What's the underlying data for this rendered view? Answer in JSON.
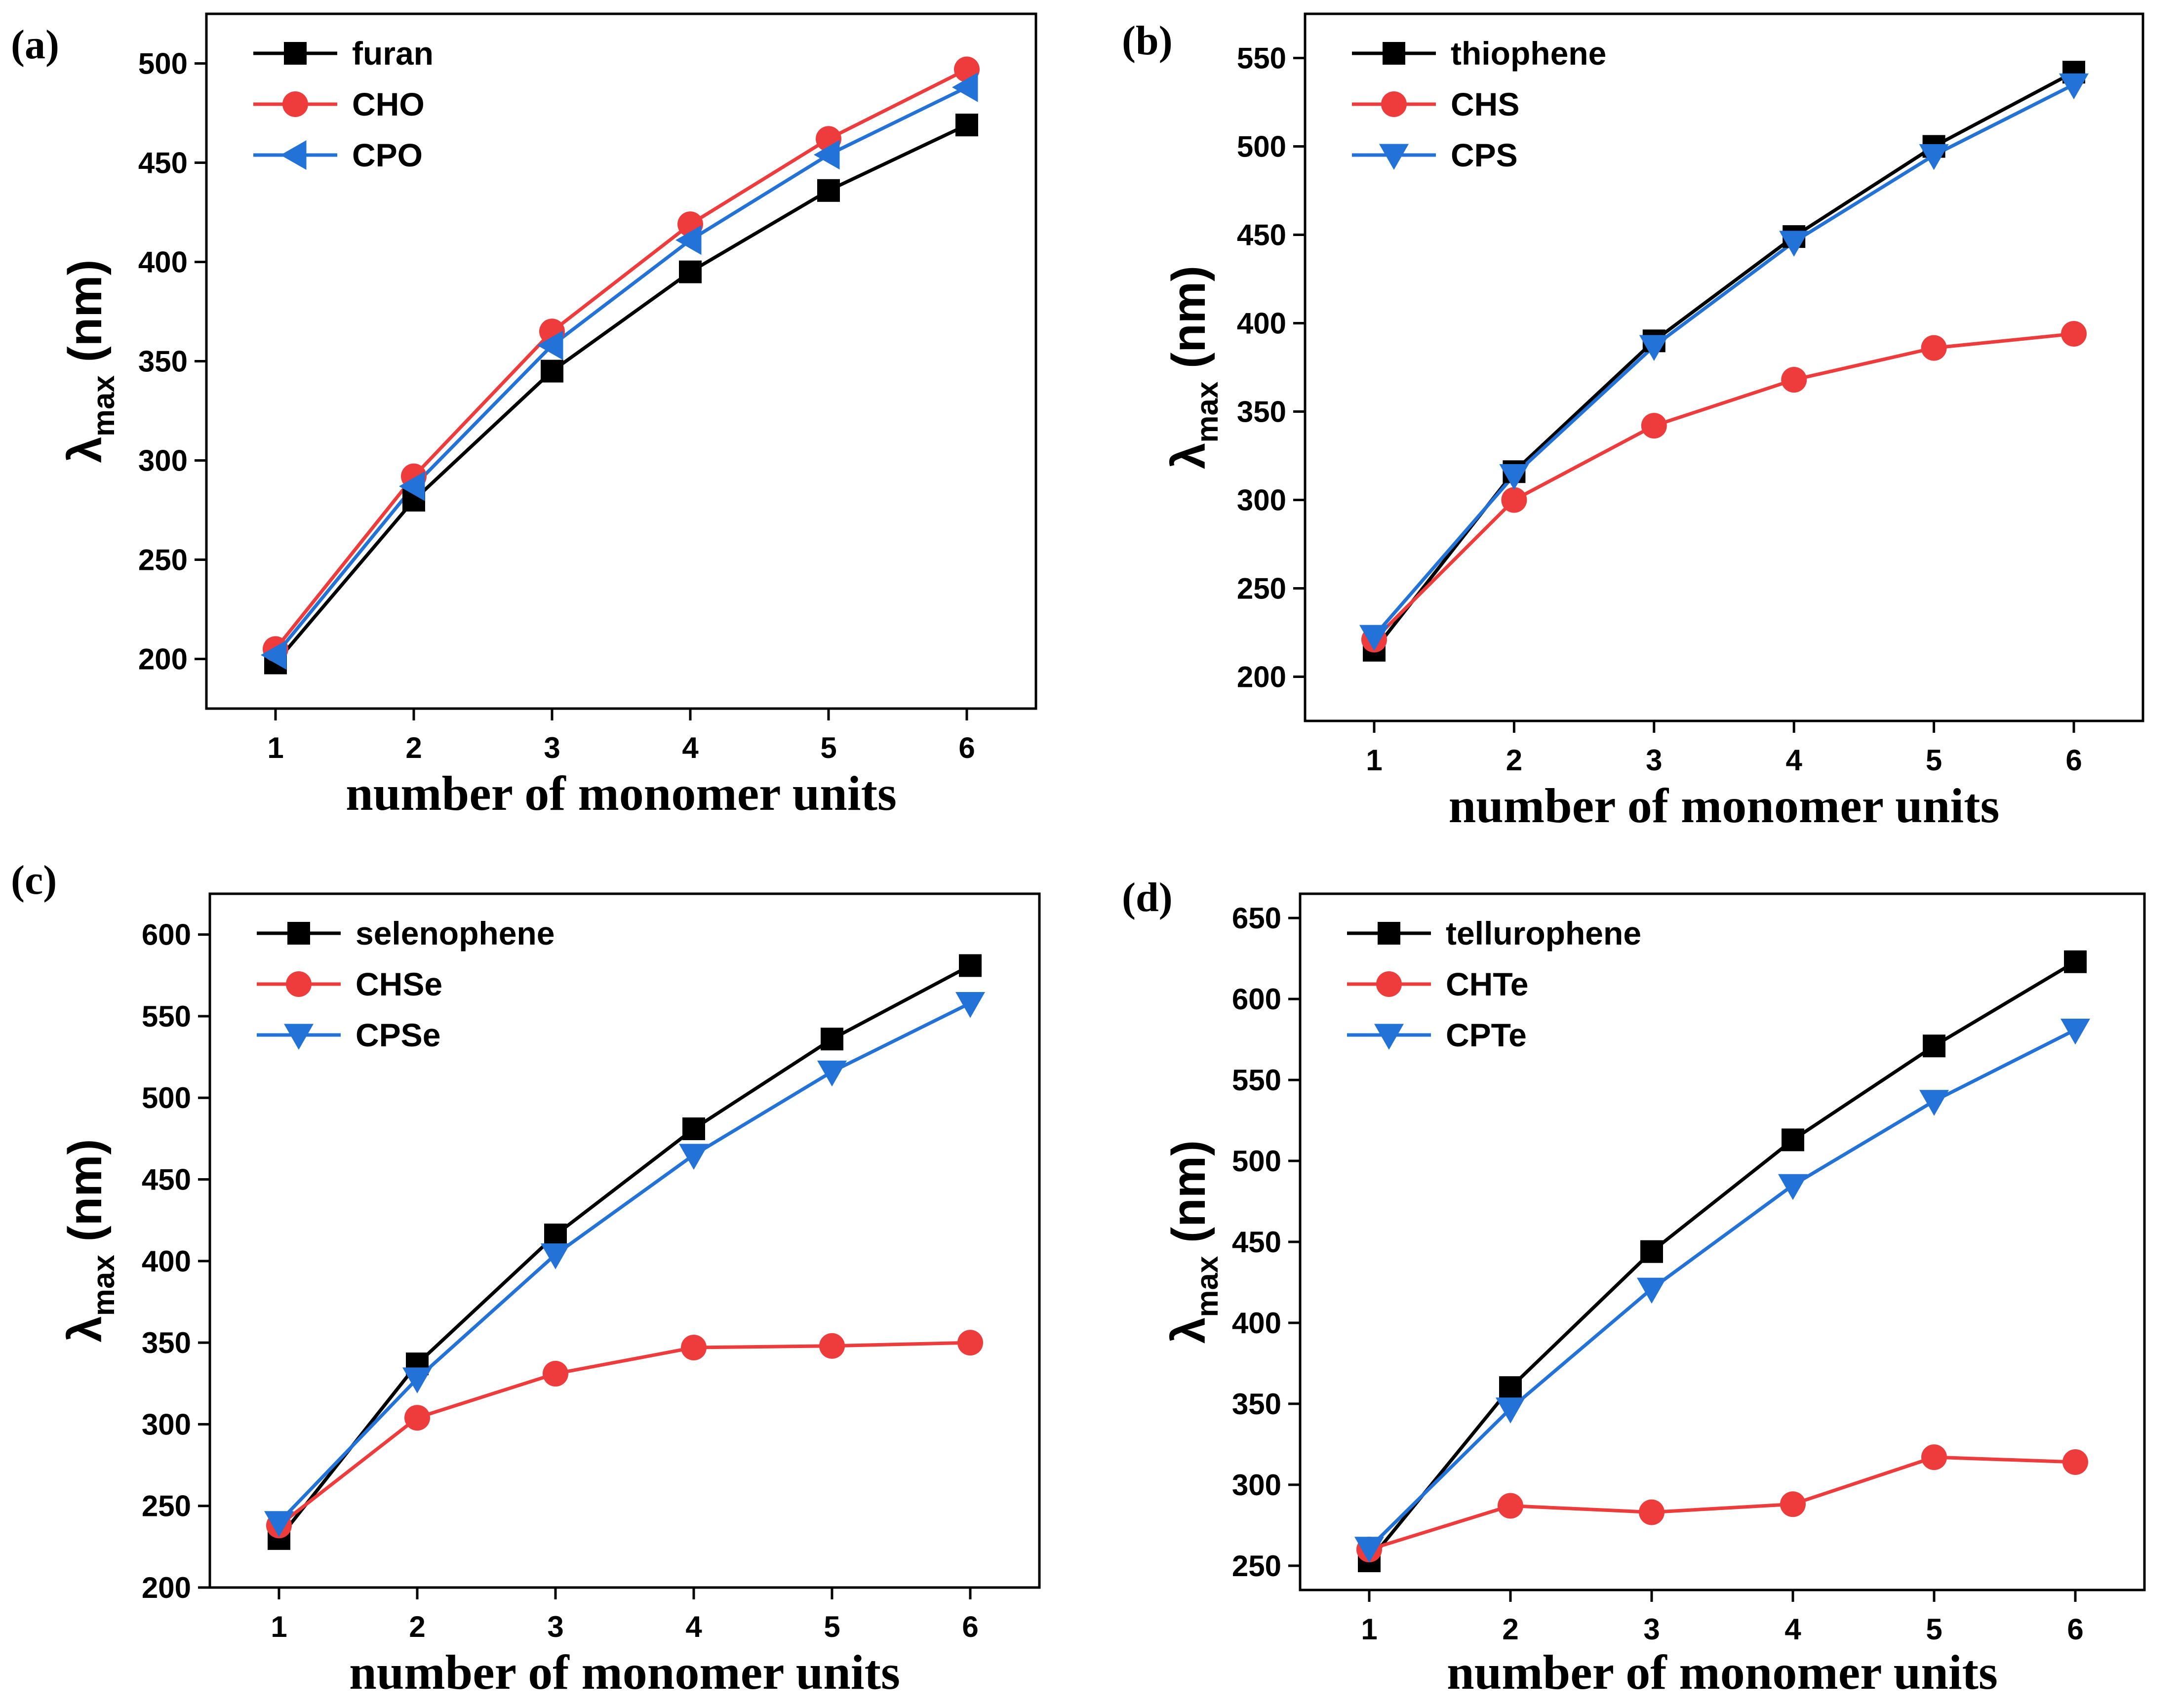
{
  "colors": {
    "black": "#000000",
    "red": "#ee3b3b",
    "blue": "#2272d8"
  },
  "chart_data": [
    {
      "panel": "(a)",
      "type": "line",
      "xlabel": "number of monomer units",
      "ylabel": {
        "symbol": "λ",
        "sub": "max",
        "unit": "(nm)"
      },
      "x": [
        1,
        2,
        3,
        4,
        5,
        6
      ],
      "ylim": [
        175,
        525
      ],
      "yticks": [
        200,
        250,
        300,
        350,
        400,
        450,
        500
      ],
      "series": [
        {
          "name": "furan",
          "color": "#000000",
          "marker": "square",
          "values": [
            198,
            280,
            345,
            395,
            436,
            469
          ]
        },
        {
          "name": "CHO",
          "color": "#ee3b3b",
          "marker": "circle",
          "values": [
            205,
            292,
            365,
            419,
            462,
            497
          ]
        },
        {
          "name": "CPO",
          "color": "#2272d8",
          "marker": "triangle-left",
          "values": [
            202,
            287,
            358,
            411,
            454,
            488
          ]
        }
      ]
    },
    {
      "panel": "(b)",
      "type": "line",
      "xlabel": "number of monomer units",
      "ylabel": {
        "symbol": "λ",
        "sub": "max",
        "unit": "(nm)"
      },
      "x": [
        1,
        2,
        3,
        4,
        5,
        6
      ],
      "ylim": [
        175,
        575
      ],
      "yticks": [
        200,
        250,
        300,
        350,
        400,
        450,
        500,
        550
      ],
      "series": [
        {
          "name": "thiophene",
          "color": "#000000",
          "marker": "square",
          "values": [
            215,
            316,
            390,
            449,
            500,
            542
          ]
        },
        {
          "name": "CHS",
          "color": "#ee3b3b",
          "marker": "circle",
          "values": [
            221,
            300,
            342,
            368,
            386,
            394
          ]
        },
        {
          "name": "CPS",
          "color": "#2272d8",
          "marker": "triangle-down",
          "values": [
            223,
            314,
            387,
            446,
            495,
            535
          ]
        }
      ]
    },
    {
      "panel": "(c)",
      "type": "line",
      "xlabel": "number of monomer units",
      "ylabel": {
        "symbol": "λ",
        "sub": "max",
        "unit": "(nm)"
      },
      "x": [
        1,
        2,
        3,
        4,
        5,
        6
      ],
      "ylim": [
        200,
        625
      ],
      "yticks": [
        200,
        250,
        300,
        350,
        400,
        450,
        500,
        550,
        600
      ],
      "series": [
        {
          "name": "selenophene",
          "color": "#000000",
          "marker": "square",
          "values": [
            230,
            337,
            416,
            481,
            536,
            581
          ]
        },
        {
          "name": "CHSe",
          "color": "#ee3b3b",
          "marker": "circle",
          "values": [
            238,
            304,
            331,
            347,
            348,
            350
          ]
        },
        {
          "name": "CPSe",
          "color": "#2272d8",
          "marker": "triangle-down",
          "values": [
            240,
            328,
            404,
            465,
            516,
            558
          ]
        }
      ]
    },
    {
      "panel": "(d)",
      "type": "line",
      "xlabel": "number of monomer units",
      "ylabel": {
        "symbol": "λ",
        "sub": "max",
        "unit": "(nm)"
      },
      "x": [
        1,
        2,
        3,
        4,
        5,
        6
      ],
      "ylim": [
        235,
        665
      ],
      "yticks": [
        250,
        300,
        350,
        400,
        450,
        500,
        550,
        600,
        650
      ],
      "series": [
        {
          "name": "tellurophene",
          "color": "#000000",
          "marker": "square",
          "values": [
            253,
            360,
            444,
            513,
            571,
            623
          ]
        },
        {
          "name": "CHTe",
          "color": "#ee3b3b",
          "marker": "circle",
          "values": [
            260,
            287,
            283,
            288,
            317,
            314
          ]
        },
        {
          "name": "CPTe",
          "color": "#2272d8",
          "marker": "triangle-down",
          "values": [
            261,
            347,
            421,
            485,
            537,
            581
          ]
        }
      ]
    }
  ]
}
